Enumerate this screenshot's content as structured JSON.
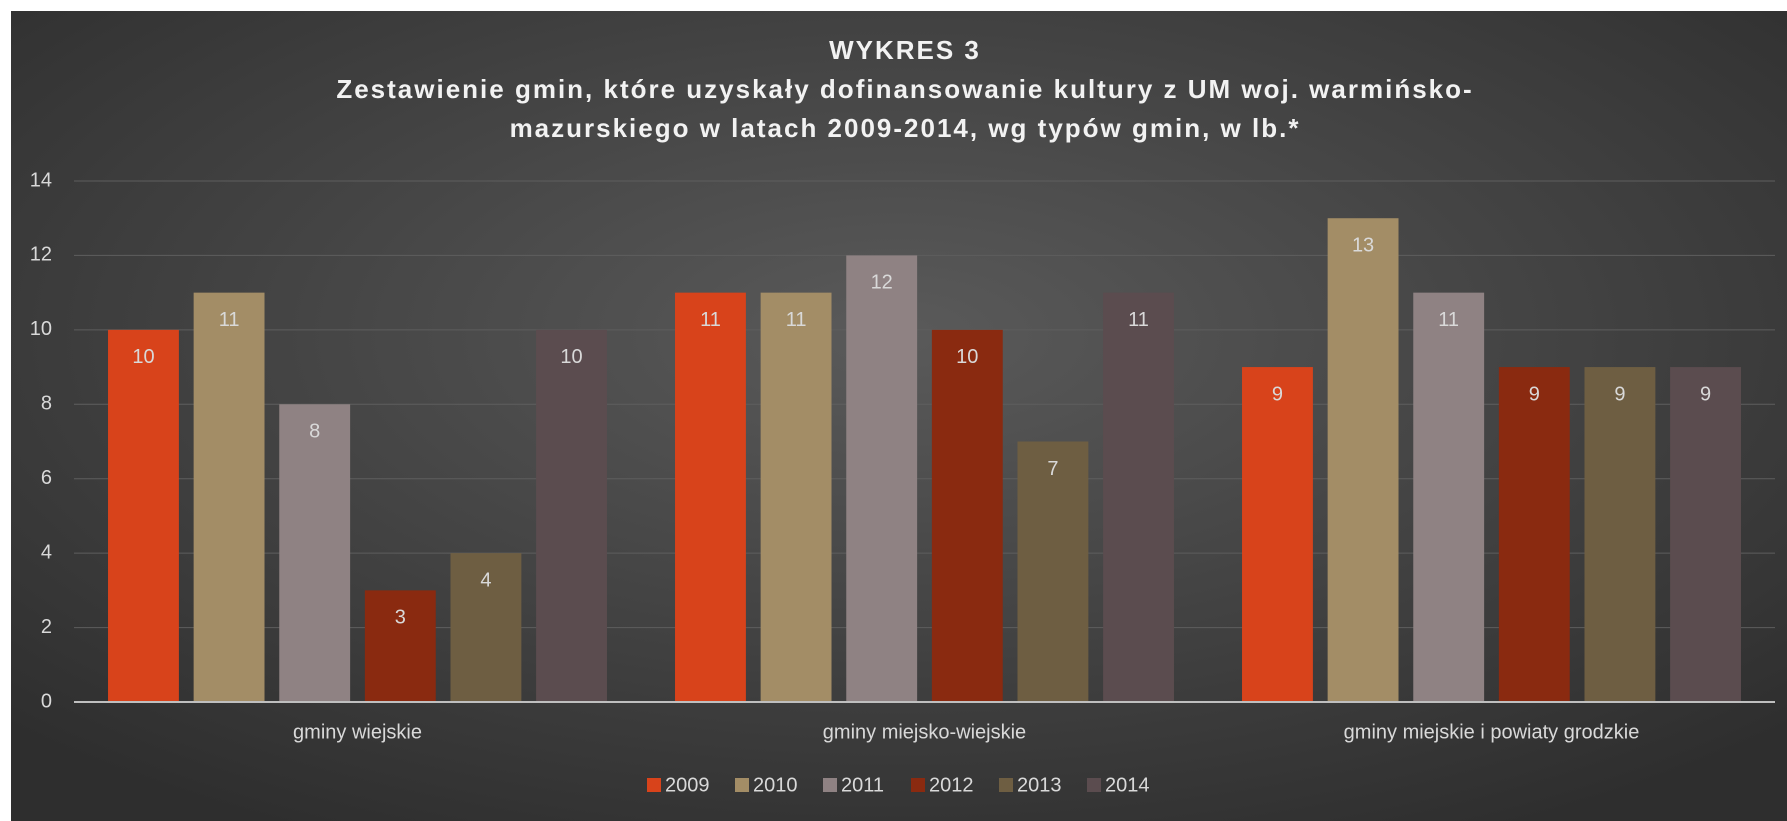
{
  "chart_data": {
    "type": "bar",
    "title": "WYKRES 3",
    "subtitle": [
      "Zestawienie gmin, które uzyskały dofinansowanie kultury z UM woj. warmińsko-",
      "mazurskiego w latach 2009-2014, wg typów gmin, w lb.*"
    ],
    "categories": [
      "gminy wiejskie",
      "gminy miejsko-wiejskie",
      "gminy miejskie i powiaty grodzkie"
    ],
    "series": [
      {
        "name": "2009",
        "color": "#d8431b",
        "values": [
          10,
          11,
          9
        ]
      },
      {
        "name": "2010",
        "color": "#a38d66",
        "values": [
          11,
          11,
          13
        ]
      },
      {
        "name": "2011",
        "color": "#8f8283",
        "values": [
          8,
          12,
          11
        ]
      },
      {
        "name": "2012",
        "color": "#8a2a10",
        "values": [
          3,
          10,
          9
        ]
      },
      {
        "name": "2013",
        "color": "#6e5e42",
        "values": [
          4,
          7,
          9
        ]
      },
      {
        "name": "2014",
        "color": "#5b4c4f",
        "values": [
          10,
          11,
          9
        ]
      }
    ],
    "ylim": [
      0,
      14
    ],
    "yticks": [
      0,
      2,
      4,
      6,
      8,
      10,
      12,
      14
    ],
    "grid": true,
    "legend": "bottom"
  }
}
